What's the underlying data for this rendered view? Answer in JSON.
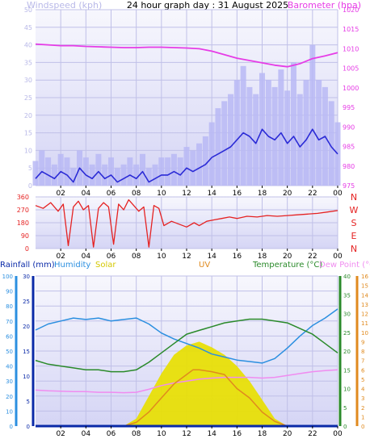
{
  "title": "24 hour graph day : 31 August 2025",
  "colors": {
    "windspeed": "#2b2bd6",
    "gust": "#b9b9f5",
    "barometer": "#e63ce6",
    "winddir": "#e52222",
    "rain": "#0a2aa8",
    "humidity": "#2b8fe0",
    "solar": "#e8e000",
    "uv": "#e08a1e",
    "temperature": "#2a8a2a",
    "dewpoint": "#f08cf0",
    "plot_bg_top": "#f4f4fc",
    "plot_bg_bottom": "#d8d8f6"
  },
  "chart_data": [
    {
      "id": "wind-baro",
      "type": "line",
      "left_axis_label": "Windspeed (kph)",
      "right_axis_label": "Barometer (hpa)",
      "x_ticks": [
        "02",
        "04",
        "06",
        "08",
        "10",
        "12",
        "14",
        "16",
        "18",
        "20",
        "22",
        "00"
      ],
      "x_range": [
        0,
        24
      ],
      "left_range": [
        0,
        50
      ],
      "left_ticks": [
        "0",
        "5",
        "10",
        "15",
        "20",
        "25",
        "30",
        "35",
        "40",
        "45",
        "50"
      ],
      "right_range": [
        975,
        1020
      ],
      "right_ticks": [
        "975",
        "980",
        "985",
        "990",
        "995",
        "1000",
        "1005",
        "1010",
        "1015",
        "1020"
      ],
      "series": [
        {
          "name": "Windspeed (kph)",
          "axis": "left",
          "color_key": "windspeed",
          "x": [
            0,
            0.5,
            1,
            1.5,
            2,
            2.5,
            3,
            3.5,
            4,
            4.5,
            5,
            5.5,
            6,
            6.5,
            7,
            7.5,
            8,
            8.5,
            9,
            9.5,
            10,
            10.5,
            11,
            11.5,
            12,
            12.5,
            13,
            13.5,
            14,
            14.5,
            15,
            15.5,
            16,
            16.5,
            17,
            17.5,
            18,
            18.5,
            19,
            19.5,
            20,
            20.5,
            21,
            21.5,
            22,
            22.5,
            23,
            23.5,
            24
          ],
          "values": [
            2,
            4,
            3,
            2,
            4,
            3,
            1,
            5,
            3,
            2,
            4,
            2,
            3,
            1,
            2,
            3,
            2,
            4,
            1,
            2,
            3,
            3,
            4,
            3,
            5,
            4,
            5,
            6,
            8,
            9,
            10,
            11,
            13,
            15,
            14,
            12,
            16,
            14,
            13,
            15,
            12,
            14,
            11,
            13,
            16,
            13,
            14,
            11,
            9
          ]
        },
        {
          "name": "Gust",
          "axis": "left",
          "color_key": "gust",
          "x": [
            0,
            0.5,
            1,
            1.5,
            2,
            2.5,
            3,
            3.5,
            4,
            4.5,
            5,
            5.5,
            6,
            6.5,
            7,
            7.5,
            8,
            8.5,
            9,
            9.5,
            10,
            10.5,
            11,
            11.5,
            12,
            12.5,
            13,
            13.5,
            14,
            14.5,
            15,
            15.5,
            16,
            16.5,
            17,
            17.5,
            18,
            18.5,
            19,
            19.5,
            20,
            20.5,
            21,
            21.5,
            22,
            22.5,
            23,
            23.5,
            24
          ],
          "values": [
            7,
            10,
            8,
            6,
            9,
            8,
            5,
            10,
            8,
            6,
            9,
            6,
            8,
            5,
            6,
            8,
            6,
            9,
            5,
            6,
            8,
            8,
            9,
            8,
            11,
            10,
            12,
            14,
            18,
            22,
            24,
            26,
            30,
            34,
            28,
            26,
            32,
            30,
            28,
            33,
            27,
            35,
            26,
            30,
            40,
            30,
            28,
            24,
            18
          ]
        },
        {
          "name": "Barometer (hpa)",
          "axis": "right",
          "color_key": "barometer",
          "x": [
            0,
            1,
            2,
            3,
            4,
            5,
            6,
            7,
            8,
            9,
            10,
            11,
            12,
            13,
            14,
            15,
            16,
            17,
            18,
            19,
            20,
            21,
            22,
            23,
            24
          ],
          "values": [
            1011.2,
            1011,
            1010.8,
            1010.8,
            1010.6,
            1010.5,
            1010.4,
            1010.3,
            1010.3,
            1010.4,
            1010.4,
            1010.3,
            1010.2,
            1010.0,
            1009.4,
            1008.5,
            1007.6,
            1007,
            1006.4,
            1005.8,
            1005.4,
            1006.2,
            1007.5,
            1008.2,
            1009
          ]
        }
      ]
    },
    {
      "id": "wind-direction",
      "type": "line",
      "x_range": [
        0,
        24
      ],
      "x_ticks": [
        "02",
        "04",
        "06",
        "08",
        "10",
        "12",
        "14",
        "16",
        "18",
        "20",
        "22",
        "00"
      ],
      "left_range": [
        0,
        360
      ],
      "left_ticks": [
        "0",
        "90",
        "180",
        "270",
        "360"
      ],
      "right_labels": [
        "N",
        "W",
        "S",
        "E",
        "N"
      ],
      "series": [
        {
          "name": "Wind direction",
          "axis": "left",
          "color_key": "winddir",
          "x": [
            0,
            0.6,
            1.2,
            1.8,
            2.2,
            2.6,
            3,
            3.4,
            3.8,
            4.2,
            4.6,
            5,
            5.4,
            5.8,
            6.2,
            6.6,
            7,
            7.4,
            7.8,
            8.2,
            8.6,
            9,
            9.4,
            9.8,
            10.2,
            10.8,
            11.4,
            12,
            12.6,
            13,
            13.6,
            14.2,
            14.8,
            15.4,
            16,
            16.8,
            17.6,
            18.4,
            19.2,
            20,
            20.8,
            21.6,
            22.4,
            23.2,
            24
          ],
          "values": [
            300,
            280,
            320,
            260,
            310,
            20,
            290,
            330,
            270,
            300,
            10,
            280,
            320,
            290,
            30,
            310,
            270,
            340,
            300,
            260,
            290,
            10,
            300,
            280,
            160,
            190,
            170,
            150,
            180,
            160,
            190,
            200,
            210,
            220,
            210,
            225,
            220,
            230,
            225,
            230,
            235,
            240,
            245,
            255,
            265
          ]
        }
      ]
    },
    {
      "id": "rain-hum-temp",
      "type": "line",
      "legend": [
        "Rainfall (mm)",
        "Humidity",
        "Solar",
        "UV",
        "Temperature (°C)",
        "Dew Point (°C)"
      ],
      "x_range": [
        0,
        24
      ],
      "x_ticks": [
        "02",
        "04",
        "06",
        "08",
        "10",
        "12",
        "14",
        "16",
        "18",
        "20",
        "22",
        "00"
      ],
      "humidity_range": [
        0,
        100
      ],
      "humidity_ticks": [
        "0",
        "10",
        "20",
        "30",
        "40",
        "50",
        "60",
        "70",
        "80",
        "90",
        "100"
      ],
      "rain_range": [
        0,
        30
      ],
      "rain_ticks": [
        "0",
        "5",
        "10",
        "15",
        "20",
        "25",
        "30"
      ],
      "temp_range": [
        0,
        40
      ],
      "temp_ticks": [
        "0",
        "5",
        "10",
        "15",
        "20",
        "25",
        "30",
        "35",
        "40"
      ],
      "uv_range": [
        0,
        16
      ],
      "uv_ticks": [
        "0",
        "1",
        "2",
        "3",
        "4",
        "5",
        "6",
        "7",
        "8",
        "9",
        "10",
        "11",
        "12",
        "13",
        "14",
        "15",
        "16"
      ],
      "series": [
        {
          "name": "Humidity",
          "axis": "humidity",
          "color_key": "humidity",
          "x": [
            0,
            1,
            2,
            3,
            4,
            5,
            6,
            7,
            8,
            9,
            10,
            11,
            12,
            13,
            14,
            15,
            16,
            17,
            18,
            19,
            20,
            21,
            22,
            23,
            24
          ],
          "values": [
            64,
            68,
            70,
            72,
            71,
            72,
            70,
            71,
            72,
            68,
            62,
            58,
            55,
            52,
            48,
            46,
            44,
            43,
            42,
            45,
            52,
            60,
            67,
            72,
            78
          ]
        },
        {
          "name": "Temperature (°C)",
          "axis": "temp",
          "color_key": "temperature",
          "x": [
            0,
            1,
            2,
            3,
            4,
            5,
            6,
            7,
            8,
            9,
            10,
            11,
            12,
            13,
            14,
            15,
            16,
            17,
            18,
            19,
            20,
            21,
            22,
            23,
            24
          ],
          "values": [
            17.5,
            16.5,
            16,
            15.5,
            15,
            15,
            14.5,
            14.5,
            15,
            17,
            19.5,
            22,
            24.5,
            25.5,
            26.5,
            27.5,
            28,
            28.5,
            28.5,
            28,
            27.5,
            26,
            24.5,
            22,
            19.5
          ]
        },
        {
          "name": "Dew Point (°C)",
          "axis": "temp",
          "color_key": "dewpoint",
          "x": [
            0,
            1,
            2,
            3,
            4,
            5,
            6,
            7,
            8,
            9,
            10,
            11,
            12,
            13,
            14,
            15,
            16,
            17,
            18,
            19,
            20,
            21,
            22,
            23,
            24
          ],
          "values": [
            9.6,
            9.4,
            9.3,
            9.2,
            9.2,
            9.0,
            9.0,
            8.9,
            9.0,
            9.8,
            10.8,
            11.5,
            12.0,
            12.5,
            12.8,
            13.0,
            13.0,
            13.0,
            12.8,
            13.0,
            13.5,
            14.0,
            14.5,
            14.8,
            15.0
          ]
        },
        {
          "name": "Solar",
          "axis": "temp",
          "color_key": "solar",
          "x": [
            7,
            8,
            9,
            10,
            11,
            12,
            13,
            14,
            15,
            16,
            17,
            18,
            19,
            20
          ],
          "values": [
            0,
            2,
            8,
            14,
            19,
            21.5,
            22.5,
            21,
            19,
            16,
            12,
            7,
            2,
            0
          ]
        },
        {
          "name": "UV",
          "axis": "uv",
          "color_key": "uv",
          "x": [
            7,
            8,
            9,
            10,
            11,
            12,
            12.5,
            13,
            14,
            15,
            16,
            17,
            18,
            19,
            20
          ],
          "values": [
            0,
            0.4,
            1.5,
            3,
            4.5,
            5.5,
            6,
            6,
            5.8,
            5.5,
            4,
            3,
            1.5,
            0.5,
            0
          ]
        },
        {
          "name": "Rainfall (mm)",
          "axis": "rain",
          "color_key": "rain",
          "x": [
            0,
            24
          ],
          "values": [
            0,
            0
          ]
        }
      ]
    }
  ]
}
